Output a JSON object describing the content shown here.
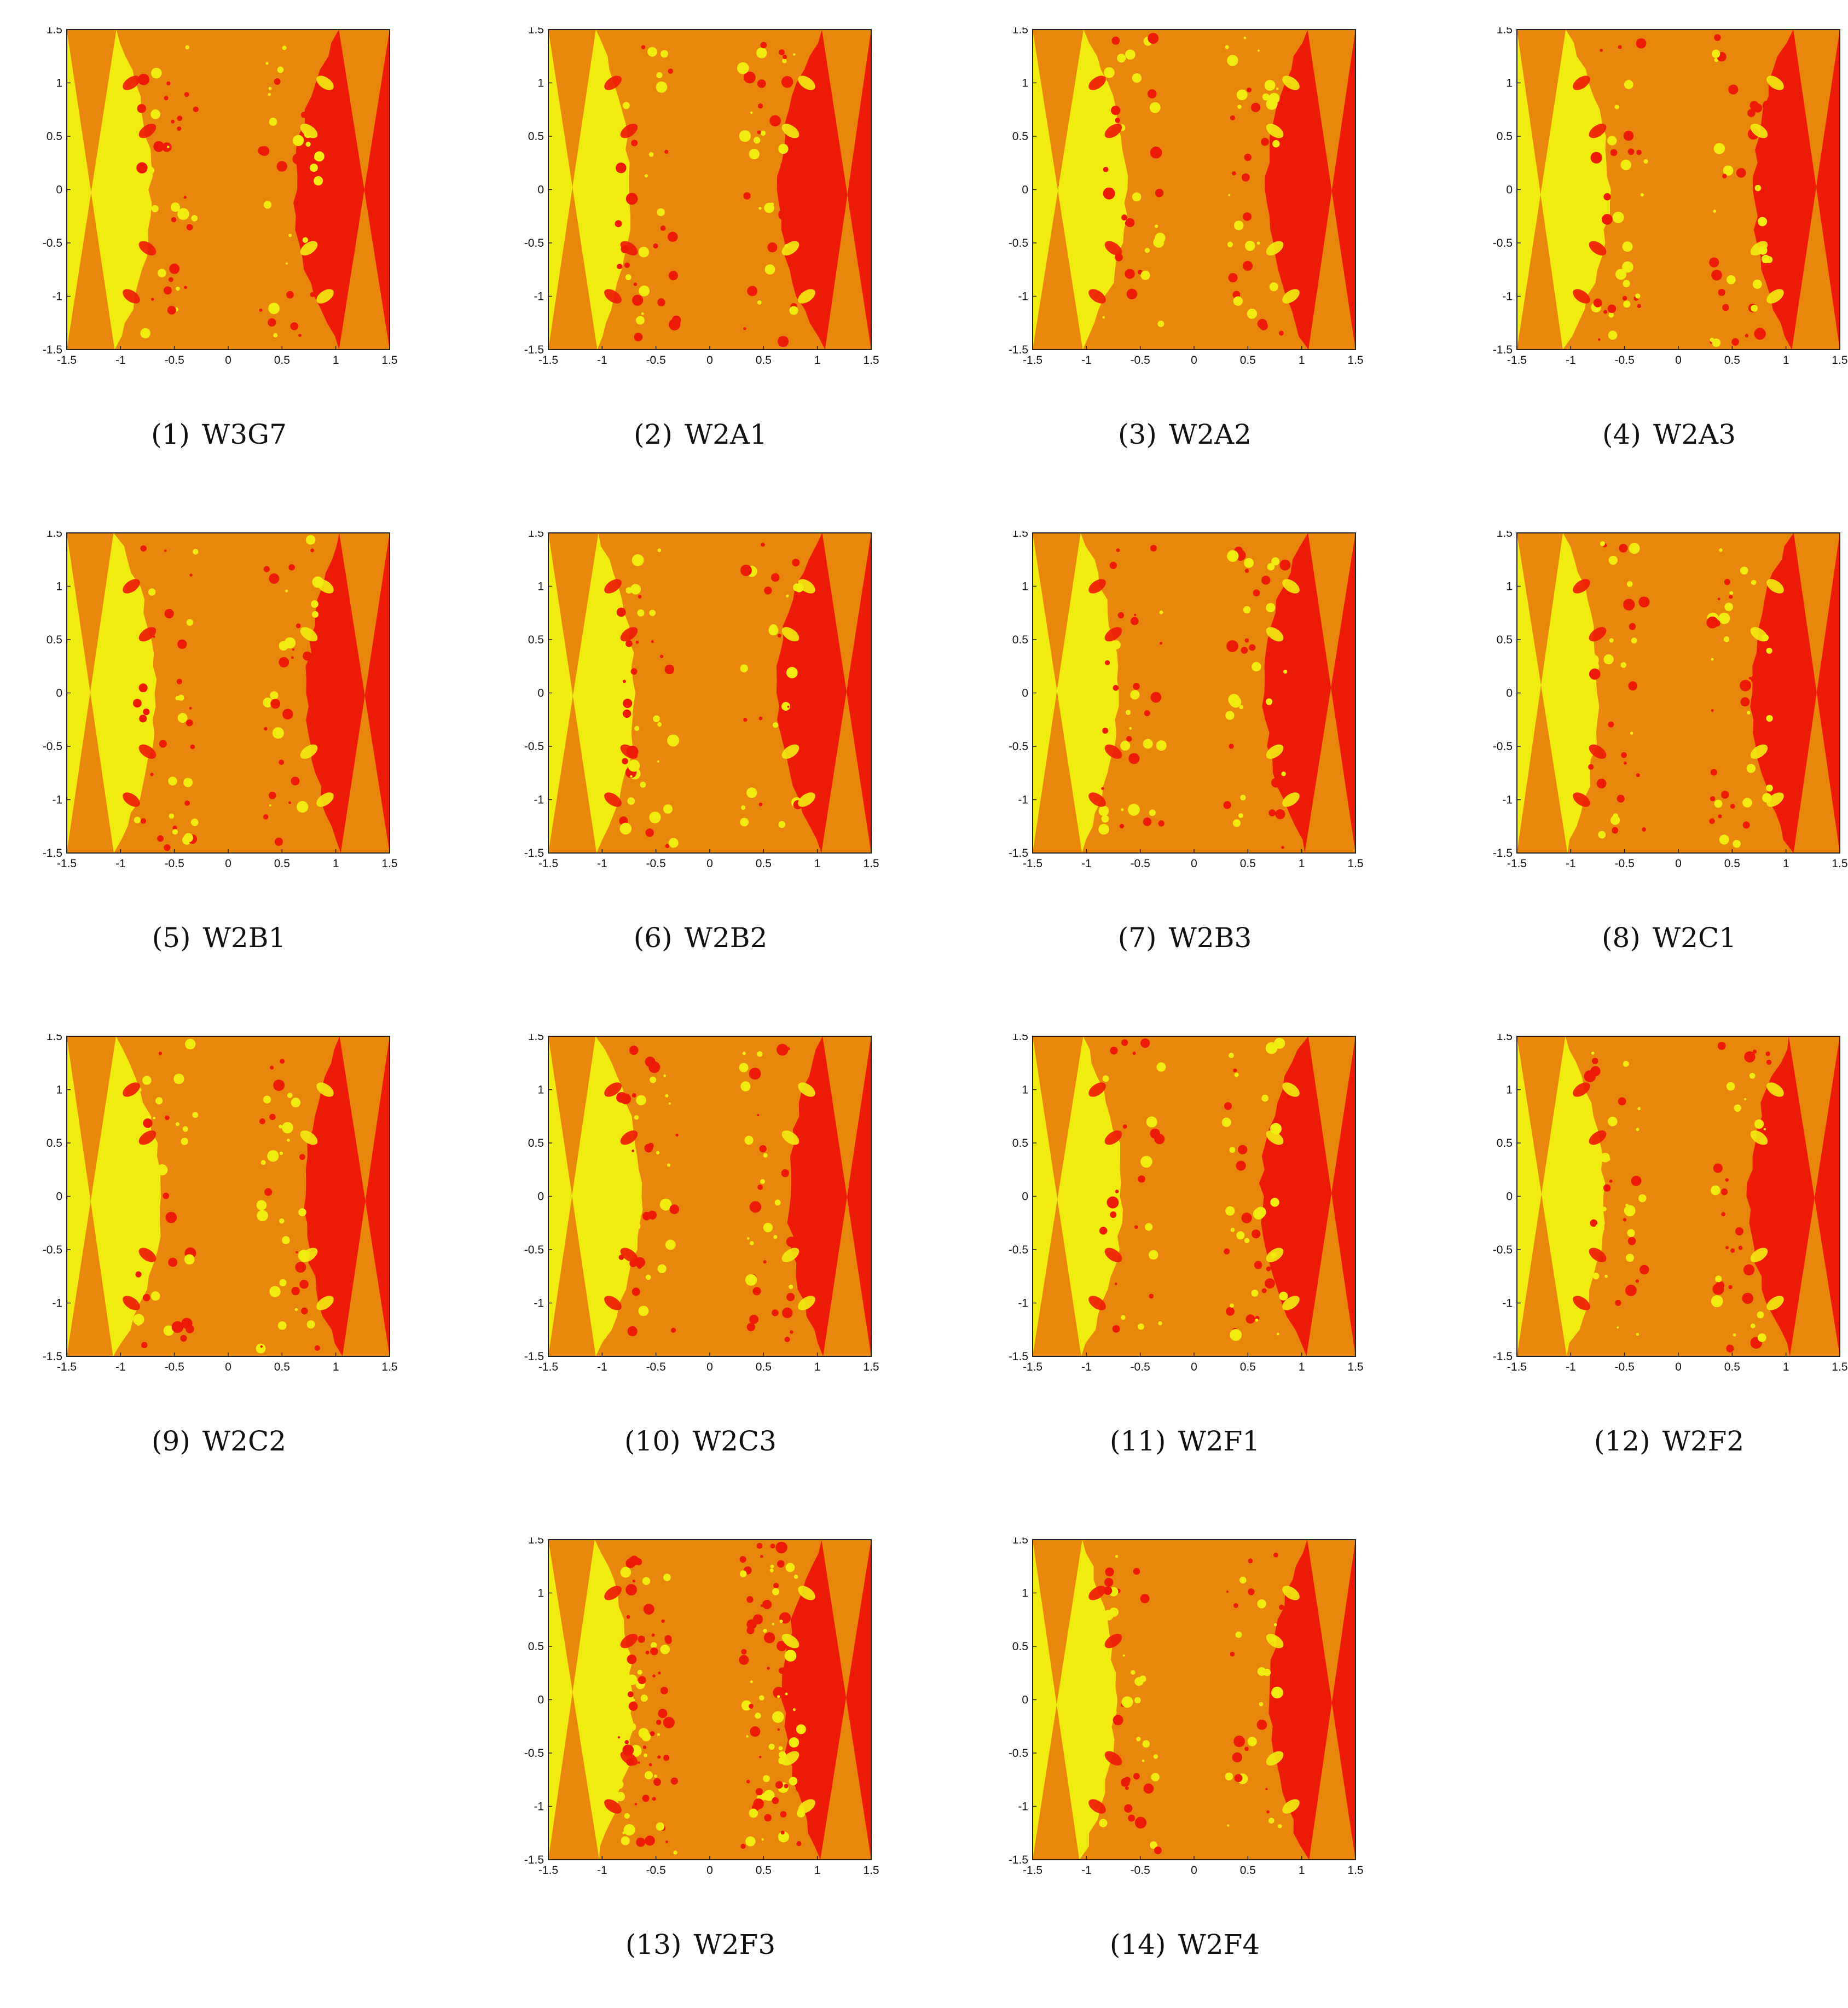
{
  "figure": {
    "panels": [
      {
        "number": "(1)",
        "method": "W3G7"
      },
      {
        "number": "(2)",
        "method": "W2A1"
      },
      {
        "number": "(3)",
        "method": "W2A2"
      },
      {
        "number": "(4)",
        "method": "W2A3"
      },
      {
        "number": "(5)",
        "method": "W2B1"
      },
      {
        "number": "(6)",
        "method": "W2B2"
      },
      {
        "number": "(7)",
        "method": "W2B3"
      },
      {
        "number": "(8)",
        "method": "W2C1"
      },
      {
        "number": "(9)",
        "method": "W2C2"
      },
      {
        "number": "(10)",
        "method": "W2C3"
      },
      {
        "number": "(11)",
        "method": "W2F1"
      },
      {
        "number": "(12)",
        "method": "W2F2"
      },
      {
        "number": "(13)",
        "method": "W2F3"
      },
      {
        "number": "(14)",
        "method": "W2F4"
      }
    ],
    "axes": {
      "x_ticks": [
        "-1.5",
        "-1",
        "-0.5",
        "0",
        "0.5",
        "1",
        "1.5"
      ],
      "y_ticks": [
        "1.5",
        "1",
        "0.5",
        "0",
        "-0.5",
        "-1",
        "-1.5"
      ],
      "xlim": [
        -1.5,
        1.5
      ],
      "ylim": [
        -1.5,
        1.5
      ]
    },
    "colors": {
      "yellow_basin": "#f0ec10",
      "orange_basin": "#e8870c",
      "red_basin": "#ee1a08"
    }
  }
}
